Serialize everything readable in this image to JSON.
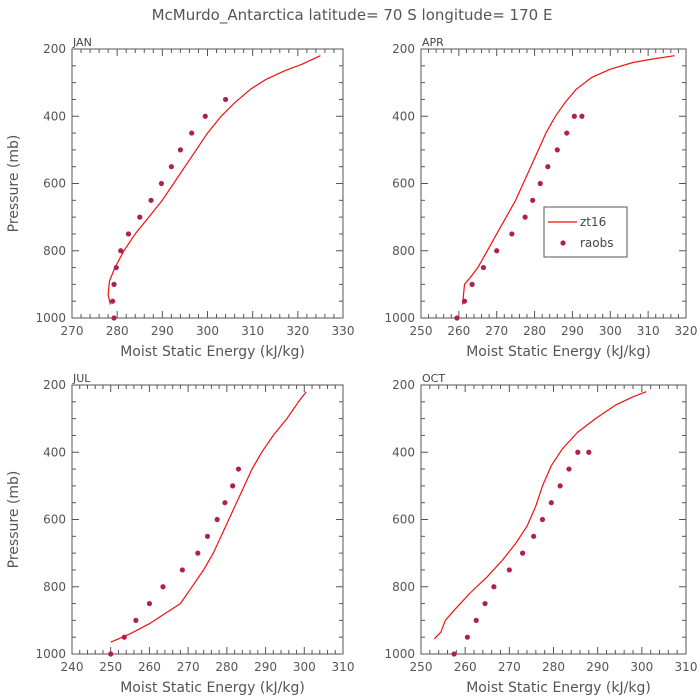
{
  "figure": {
    "title": "McMurdo_Antarctica  latitude= 70 S longitude= 170 E"
  },
  "colors": {
    "model_line": "#ee1111",
    "obs_marker": "#b0204e",
    "axis": "#555555"
  },
  "legend": {
    "model_label": "zt16",
    "obs_label": "raobs",
    "panel": "APR",
    "placement": "center-right"
  },
  "chart_data": [
    {
      "type": "line",
      "panel": "JAN",
      "title": "JAN",
      "xlabel": "Moist Static Energy (kJ/kg)",
      "ylabel": "Pressure (mb)",
      "xlim": [
        270,
        330
      ],
      "ylim": [
        1000,
        200
      ],
      "xticks": [
        270,
        280,
        290,
        300,
        310,
        320,
        330
      ],
      "yticks": [
        200,
        400,
        600,
        800,
        1000
      ],
      "series": [
        {
          "name": "zt16",
          "kind": "line",
          "x": [
            278.5,
            278.0,
            278.3,
            279.5,
            281.5,
            284.0,
            287.0,
            290.0,
            292.5,
            295.0,
            297.5,
            300.0,
            303.0,
            306.0,
            309.5,
            313.0,
            317.0,
            321.0,
            325.0
          ],
          "y": [
            960,
            930,
            890,
            850,
            800,
            750,
            700,
            650,
            600,
            550,
            500,
            450,
            400,
            360,
            320,
            290,
            265,
            245,
            220
          ]
        },
        {
          "name": "raobs",
          "kind": "scatter",
          "x": [
            279.3,
            279.0,
            279.3,
            279.8,
            280.8,
            282.5,
            285.0,
            287.5,
            289.8,
            292.0,
            294.0,
            296.5,
            299.5,
            304.0
          ],
          "y": [
            1000,
            950,
            900,
            850,
            800,
            750,
            700,
            650,
            600,
            550,
            500,
            450,
            400,
            350
          ]
        }
      ]
    },
    {
      "type": "line",
      "panel": "APR",
      "title": "APR",
      "xlabel": "Moist Static Energy (kJ/kg)",
      "ylabel": "",
      "xlim": [
        250,
        320
      ],
      "ylim": [
        1000,
        200
      ],
      "xticks": [
        250,
        260,
        270,
        280,
        290,
        300,
        310,
        320
      ],
      "yticks": [
        200,
        400,
        600,
        800,
        1000
      ],
      "series": [
        {
          "name": "zt16",
          "kind": "line",
          "x": [
            261.0,
            261.5,
            263.0,
            265.0,
            267.5,
            270.0,
            272.5,
            275.0,
            277.0,
            279.0,
            281.0,
            283.0,
            285.5,
            288.0,
            291.0,
            295.0,
            300.0,
            306.0,
            311.0,
            317.0
          ],
          "y": [
            960,
            900,
            880,
            850,
            800,
            750,
            700,
            650,
            600,
            550,
            500,
            450,
            400,
            360,
            320,
            285,
            260,
            240,
            230,
            220
          ]
        },
        {
          "name": "raobs",
          "kind": "scatter",
          "x": [
            259.5,
            261.5,
            263.5,
            266.5,
            270.0,
            274.0,
            277.5,
            279.5,
            281.5,
            283.5,
            286.0,
            288.5,
            290.5,
            292.5
          ],
          "y": [
            1000,
            950,
            900,
            850,
            800,
            750,
            700,
            650,
            600,
            550,
            500,
            450,
            400,
            400
          ]
        }
      ]
    },
    {
      "type": "line",
      "panel": "JUL",
      "title": "JUL",
      "xlabel": "Moist Static Energy (kJ/kg)",
      "ylabel": "Pressure (mb)",
      "xlim": [
        240,
        310
      ],
      "ylim": [
        1000,
        200
      ],
      "xticks": [
        240,
        250,
        260,
        270,
        280,
        290,
        300,
        310
      ],
      "yticks": [
        200,
        400,
        600,
        800,
        1000
      ],
      "series": [
        {
          "name": "zt16",
          "kind": "line",
          "x": [
            250.0,
            255.0,
            260.0,
            264.0,
            268.0,
            271.0,
            274.0,
            276.5,
            278.5,
            280.5,
            282.5,
            284.5,
            286.5,
            289.0,
            292.0,
            295.5,
            298.5,
            300.5
          ],
          "y": [
            965,
            940,
            910,
            880,
            850,
            800,
            750,
            700,
            650,
            600,
            550,
            500,
            450,
            400,
            350,
            300,
            250,
            220
          ]
        },
        {
          "name": "raobs",
          "kind": "scatter",
          "x": [
            250.0,
            253.5,
            256.5,
            260.0,
            263.5,
            268.5,
            272.5,
            275.0,
            277.5,
            279.5,
            281.5,
            283.0
          ],
          "y": [
            1000,
            950,
            900,
            850,
            800,
            750,
            700,
            650,
            600,
            550,
            500,
            450
          ]
        }
      ]
    },
    {
      "type": "line",
      "panel": "OCT",
      "title": "OCT",
      "xlabel": "Moist Static Energy (kJ/kg)",
      "ylabel": "",
      "xlim": [
        250,
        310
      ],
      "ylim": [
        1000,
        200
      ],
      "xticks": [
        250,
        260,
        270,
        280,
        290,
        300,
        310
      ],
      "yticks": [
        200,
        400,
        600,
        800,
        1000
      ],
      "series": [
        {
          "name": "zt16",
          "kind": "line",
          "x": [
            253.0,
            254.5,
            255.5,
            257.5,
            261.0,
            265.0,
            268.5,
            271.5,
            274.0,
            276.0,
            277.5,
            279.5,
            282.0,
            285.5,
            289.5,
            294.0,
            298.0,
            301.0
          ],
          "y": [
            955,
            935,
            900,
            870,
            820,
            770,
            720,
            670,
            620,
            560,
            500,
            440,
            390,
            340,
            300,
            260,
            235,
            220
          ]
        },
        {
          "name": "raobs",
          "kind": "scatter",
          "x": [
            257.5,
            260.5,
            262.5,
            264.5,
            266.5,
            270.0,
            273.0,
            275.5,
            277.5,
            279.5,
            281.5,
            283.5,
            285.5,
            288.0
          ],
          "y": [
            1000,
            950,
            900,
            850,
            800,
            750,
            700,
            650,
            600,
            550,
            500,
            450,
            400,
            400
          ]
        }
      ]
    }
  ]
}
